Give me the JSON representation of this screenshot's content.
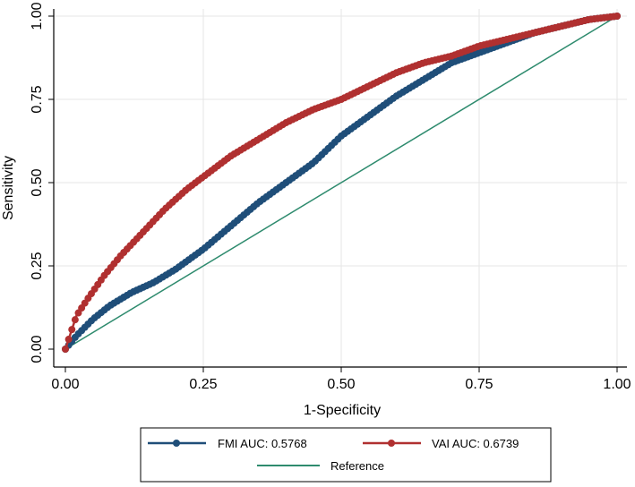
{
  "chart_data": {
    "type": "line",
    "title": "",
    "xlabel": "1-Specificity",
    "ylabel": "Sensitivity",
    "xlim": [
      0,
      1
    ],
    "ylim": [
      0,
      1
    ],
    "grid": true,
    "legend_position": "bottom",
    "x_ticks": [
      0,
      0.25,
      0.5,
      0.75,
      1
    ],
    "x_tick_labels": [
      "0.00",
      "0.25",
      "0.50",
      "0.75",
      "1.00"
    ],
    "y_ticks": [
      0,
      0.25,
      0.5,
      0.75,
      1
    ],
    "y_tick_labels": [
      "0.00",
      "0.25",
      "0.50",
      "0.75",
      "1.00"
    ],
    "series": [
      {
        "name": "FMI AUC: 0.5768",
        "color": "#1f4e79",
        "marker": "circle",
        "x": [
          0,
          0.02,
          0.05,
          0.08,
          0.12,
          0.16,
          0.2,
          0.25,
          0.3,
          0.35,
          0.4,
          0.45,
          0.5,
          0.55,
          0.6,
          0.65,
          0.7,
          0.75,
          0.8,
          0.85,
          0.9,
          0.95,
          1
        ],
        "y": [
          0,
          0.04,
          0.09,
          0.13,
          0.17,
          0.2,
          0.24,
          0.3,
          0.37,
          0.44,
          0.5,
          0.56,
          0.64,
          0.7,
          0.76,
          0.81,
          0.86,
          0.89,
          0.92,
          0.95,
          0.97,
          0.99,
          1
        ]
      },
      {
        "name": "VAI AUC: 0.6739",
        "color": "#b03030",
        "marker": "circle",
        "x": [
          0,
          0.01,
          0.02,
          0.04,
          0.07,
          0.1,
          0.14,
          0.18,
          0.22,
          0.26,
          0.3,
          0.35,
          0.4,
          0.45,
          0.5,
          0.55,
          0.6,
          0.65,
          0.7,
          0.75,
          0.8,
          0.85,
          0.9,
          0.95,
          1
        ],
        "y": [
          0,
          0.05,
          0.1,
          0.15,
          0.22,
          0.28,
          0.35,
          0.42,
          0.48,
          0.53,
          0.58,
          0.63,
          0.68,
          0.72,
          0.75,
          0.79,
          0.83,
          0.86,
          0.88,
          0.91,
          0.93,
          0.95,
          0.97,
          0.99,
          1
        ]
      },
      {
        "name": "Reference",
        "color": "#2e8b6e",
        "marker": "none",
        "x": [
          0,
          1
        ],
        "y": [
          0,
          1
        ]
      }
    ]
  },
  "legend": {
    "fmi_label": "FMI AUC: 0.5768",
    "vai_label": "VAI AUC: 0.6739",
    "reference_label": "Reference"
  }
}
